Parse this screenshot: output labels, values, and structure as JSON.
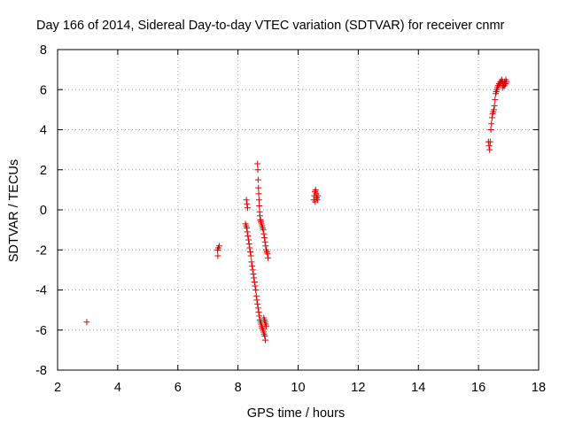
{
  "chart_data": {
    "type": "scatter",
    "title": "Day 166 of 2014, Sidereal Day-to-day VTEC variation (SDTVAR) for receiver cnmr",
    "xlabel": "GPS time / hours",
    "ylabel": "SDTVAR / TECUs",
    "xlim": [
      2,
      18
    ],
    "ylim": [
      -8,
      8
    ],
    "x_ticks": [
      2,
      4,
      6,
      8,
      10,
      12,
      14,
      16,
      18
    ],
    "y_ticks": [
      -8,
      -6,
      -4,
      -2,
      0,
      2,
      4,
      6,
      8
    ],
    "grid": true,
    "marker": "plus",
    "marker_color": "#dd0000",
    "series": [
      {
        "name": "SDTVAR",
        "x": [
          2.97,
          7.33,
          7.35,
          7.38,
          7.32,
          8.25,
          8.27,
          8.29,
          8.31,
          8.33,
          8.35,
          8.37,
          8.39,
          8.41,
          8.43,
          8.45,
          8.47,
          8.49,
          8.51,
          8.53,
          8.55,
          8.57,
          8.59,
          8.61,
          8.63,
          8.65,
          8.67,
          8.69,
          8.71,
          8.73,
          8.75,
          8.77,
          8.79,
          8.81,
          8.83,
          8.85,
          8.87,
          8.89,
          8.91,
          8.28,
          8.3,
          8.32,
          8.65,
          8.66,
          8.67,
          8.68,
          8.69,
          8.7,
          8.71,
          8.72,
          8.73,
          8.74,
          8.75,
          8.76,
          8.78,
          8.8,
          8.82,
          8.84,
          8.86,
          8.88,
          8.9,
          8.92,
          8.94,
          8.96,
          8.98,
          9.0,
          8.86,
          8.88,
          8.9,
          8.92,
          8.94,
          10.52,
          10.54,
          10.56,
          10.58,
          10.6,
          10.62,
          10.64,
          10.66,
          10.57,
          10.61,
          16.33,
          16.35,
          16.37,
          16.39,
          16.41,
          16.43,
          16.45,
          16.47,
          16.49,
          16.51,
          16.53,
          16.55,
          16.57,
          16.59,
          16.61,
          16.63,
          16.65,
          16.67,
          16.69,
          16.71,
          16.73,
          16.75,
          16.77,
          16.79,
          16.81,
          16.83,
          16.85,
          16.87,
          16.89,
          16.91,
          16.93,
          16.8,
          16.86,
          16.9
        ],
        "y": [
          -5.6,
          -2.3,
          -1.9,
          -1.8,
          -2.0,
          -0.7,
          -0.8,
          -0.9,
          -1.1,
          -1.3,
          -1.5,
          -1.7,
          -1.9,
          -2.1,
          -2.3,
          -2.6,
          -2.8,
          -3.0,
          -3.2,
          -3.4,
          -3.6,
          -3.8,
          -4.0,
          -4.3,
          -4.5,
          -4.7,
          -4.9,
          -5.1,
          -5.3,
          -5.5,
          -5.6,
          -5.7,
          -5.8,
          -5.9,
          -6.0,
          -6.1,
          -6.2,
          -6.3,
          -6.5,
          0.5,
          0.3,
          0.1,
          2.3,
          2.0,
          1.5,
          1.1,
          0.8,
          0.5,
          0.2,
          -0.1,
          -0.3,
          -0.5,
          -0.5,
          -0.6,
          -0.7,
          -0.8,
          -0.9,
          -1.0,
          -1.2,
          -1.4,
          -1.6,
          -1.8,
          -2.0,
          -2.1,
          -2.2,
          -2.4,
          -5.4,
          -5.5,
          -5.6,
          -5.7,
          -5.8,
          0.5,
          0.7,
          0.9,
          1.0,
          0.8,
          0.6,
          0.5,
          0.7,
          0.4,
          0.6,
          3.4,
          3.2,
          3.0,
          3.4,
          4.0,
          4.3,
          4.6,
          4.8,
          4.9,
          5.0,
          5.2,
          5.5,
          5.8,
          5.9,
          6.0,
          6.1,
          6.2,
          6.2,
          6.3,
          6.3,
          6.4,
          6.4,
          6.5,
          6.3,
          6.4,
          6.2,
          6.3,
          6.4,
          6.3,
          6.5,
          6.4,
          6.1,
          6.2,
          6.3
        ]
      }
    ]
  }
}
